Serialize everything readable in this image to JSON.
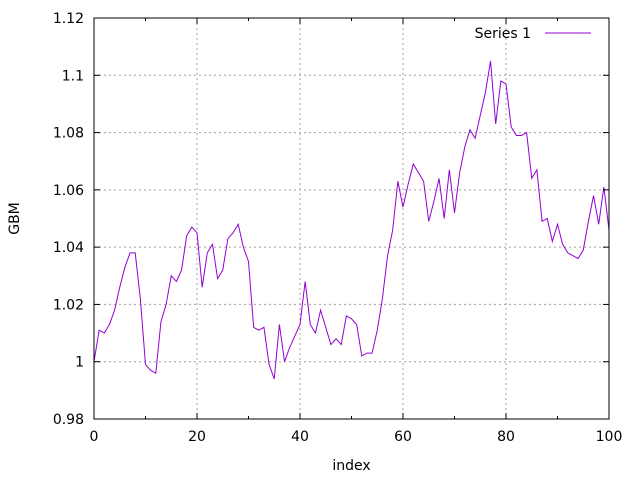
{
  "chart_data": {
    "type": "line",
    "title": "",
    "xlabel": "index",
    "ylabel": "GBM",
    "xlim": [
      0,
      100
    ],
    "ylim": [
      0.98,
      1.12
    ],
    "xticks": [
      0,
      20,
      40,
      60,
      80,
      100
    ],
    "xtick_labels": [
      "0",
      "20",
      "40",
      "60",
      "80",
      "100"
    ],
    "yticks": [
      0.98,
      1.0,
      1.02,
      1.04,
      1.06,
      1.08,
      1.1,
      1.12
    ],
    "ytick_labels": [
      "0.98",
      "1",
      "1.02",
      "1.04",
      "1.06",
      "1.08",
      "1.1",
      "1.12"
    ],
    "grid": true,
    "legend_position": "top-right",
    "series": [
      {
        "name": "Series 1",
        "color": "#9400d3",
        "x": [
          0,
          1,
          2,
          3,
          4,
          5,
          6,
          7,
          8,
          9,
          10,
          11,
          12,
          13,
          14,
          15,
          16,
          17,
          18,
          19,
          20,
          21,
          22,
          23,
          24,
          25,
          26,
          27,
          28,
          29,
          30,
          31,
          32,
          33,
          34,
          35,
          36,
          37,
          38,
          39,
          40,
          41,
          42,
          43,
          44,
          45,
          46,
          47,
          48,
          49,
          50,
          51,
          52,
          53,
          54,
          55,
          56,
          57,
          58,
          59,
          60,
          61,
          62,
          63,
          64,
          65,
          66,
          67,
          68,
          69,
          70,
          71,
          72,
          73,
          74,
          75,
          76,
          77,
          78,
          79,
          80,
          81,
          82,
          83,
          84,
          85,
          86,
          87,
          88,
          89,
          90,
          91,
          92,
          93,
          94,
          95,
          96,
          97,
          98,
          99,
          100
        ],
        "values": [
          1.0,
          1.011,
          1.01,
          1.013,
          1.018,
          1.026,
          1.033,
          1.038,
          1.038,
          1.022,
          0.999,
          0.997,
          0.996,
          1.014,
          1.02,
          1.03,
          1.028,
          1.032,
          1.044,
          1.047,
          1.045,
          1.026,
          1.038,
          1.041,
          1.029,
          1.032,
          1.043,
          1.045,
          1.048,
          1.04,
          1.035,
          1.012,
          1.011,
          1.012,
          0.999,
          0.994,
          1.013,
          1.0,
          1.005,
          1.009,
          1.013,
          1.028,
          1.013,
          1.01,
          1.018,
          1.012,
          1.006,
          1.008,
          1.006,
          1.016,
          1.015,
          1.013,
          1.002,
          1.003,
          1.003,
          1.011,
          1.022,
          1.037,
          1.046,
          1.063,
          1.054,
          1.062,
          1.069,
          1.066,
          1.063,
          1.049,
          1.056,
          1.064,
          1.05,
          1.067,
          1.052,
          1.066,
          1.075,
          1.081,
          1.078,
          1.086,
          1.094,
          1.105,
          1.083,
          1.098,
          1.097,
          1.082,
          1.079,
          1.079,
          1.08,
          1.064,
          1.067,
          1.049,
          1.05,
          1.042,
          1.048,
          1.041,
          1.038,
          1.037,
          1.036,
          1.039,
          1.049,
          1.058,
          1.048,
          1.061,
          1.046
        ]
      }
    ]
  }
}
